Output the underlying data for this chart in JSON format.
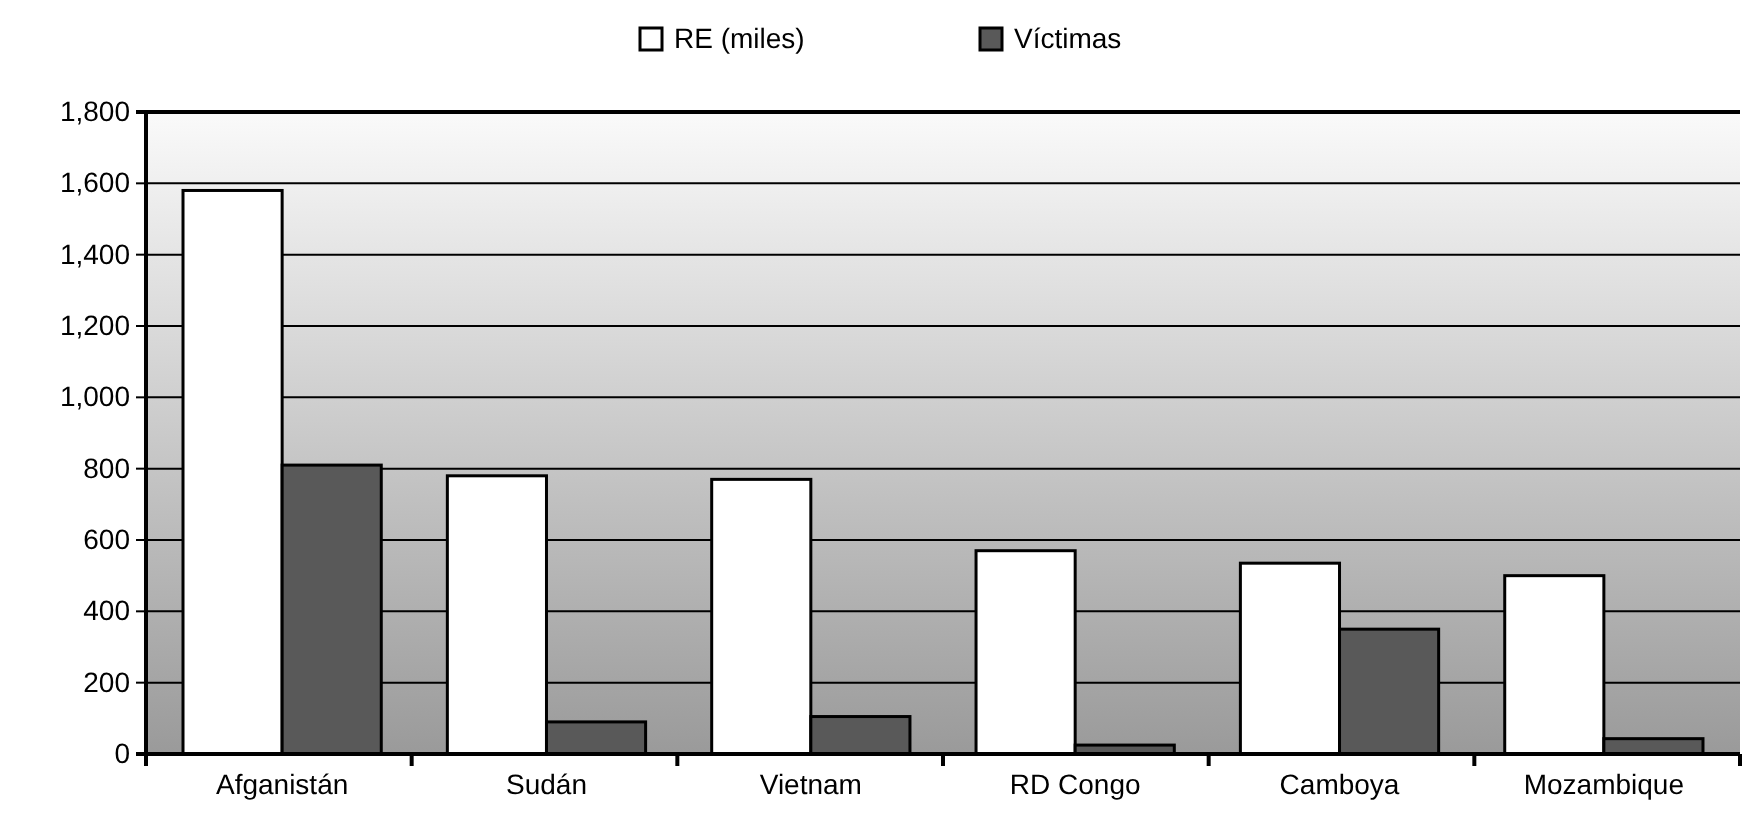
{
  "chart_data": {
    "type": "bar",
    "categories": [
      "Afganistán",
      "Sudán",
      "Vietnam",
      "RD Congo",
      "Camboya",
      "Mozambique"
    ],
    "series": [
      {
        "name": "RE (miles)",
        "color": "#ffffff",
        "values": [
          1580,
          780,
          770,
          570,
          535,
          500
        ]
      },
      {
        "name": "Víctimas",
        "color": "#595959",
        "values": [
          810,
          90,
          105,
          25,
          350,
          43
        ]
      }
    ],
    "ylim": [
      0,
      1800
    ],
    "yticks": [
      0,
      {
        "value": 200,
        "label": "200"
      },
      {
        "value": 400,
        "label": "400"
      },
      {
        "value": 600,
        "label": "600"
      },
      {
        "value": 800,
        "label": "800"
      },
      {
        "value": 1000,
        "label": "1,000"
      },
      {
        "value": 1200,
        "label": "1,200"
      },
      {
        "value": 1400,
        "label": "1,400"
      },
      {
        "value": 1600,
        "label": "1,600"
      },
      {
        "value": 1800,
        "label": "1,800"
      }
    ],
    "grid": "y",
    "legend": "top"
  }
}
